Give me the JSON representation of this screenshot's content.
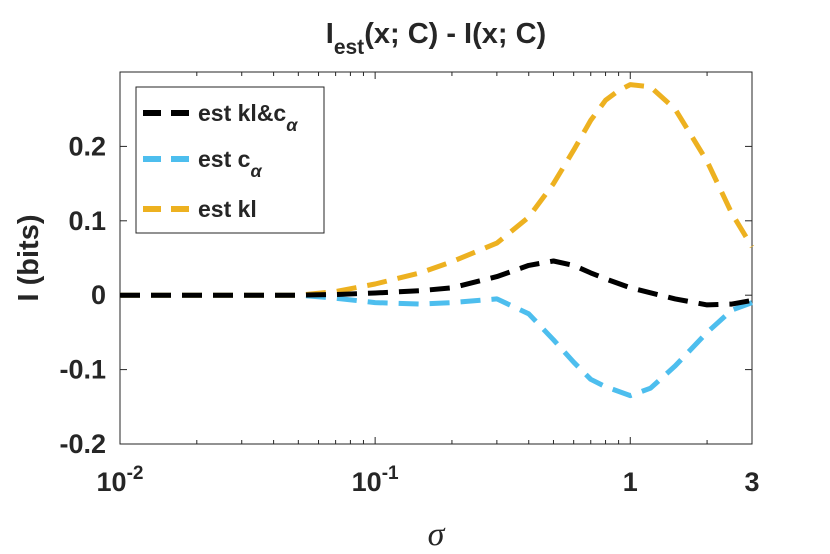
{
  "chart_data": {
    "type": "line",
    "title": {
      "base": "I",
      "sub": "est",
      "rest": "(x; C) - I(x; C)"
    },
    "xlabel": "σ",
    "ylabel": "I (bits)",
    "xscale": "log",
    "xlim": [
      0.01,
      3
    ],
    "ylim": [
      -0.2,
      0.3
    ],
    "xticks": [
      {
        "value": 0.01,
        "base": "10",
        "exp": "-2"
      },
      {
        "value": 0.1,
        "base": "10",
        "exp": "-1"
      },
      {
        "value": 1,
        "base": "1",
        "exp": ""
      },
      {
        "value": 3,
        "base": "3",
        "exp": ""
      }
    ],
    "yticks": [
      {
        "value": -0.2,
        "label": "-0.2"
      },
      {
        "value": -0.1,
        "label": "-0.1"
      },
      {
        "value": 0,
        "label": "0"
      },
      {
        "value": 0.1,
        "label": "0.1"
      },
      {
        "value": 0.2,
        "label": "0.2"
      }
    ],
    "grid": false,
    "legend_position": "top-left",
    "series": [
      {
        "name": "est kl&c",
        "name_sub": "α",
        "color": "#000000",
        "x": [
          0.01,
          0.02,
          0.05,
          0.07,
          0.1,
          0.15,
          0.2,
          0.3,
          0.4,
          0.5,
          0.6,
          0.7,
          0.8,
          1.0,
          1.5,
          2.0,
          2.5,
          3.0
        ],
        "y": [
          0,
          0,
          0,
          0.001,
          0.003,
          0.006,
          0.01,
          0.025,
          0.04,
          0.046,
          0.04,
          0.03,
          0.022,
          0.01,
          -0.005,
          -0.013,
          -0.012,
          -0.007
        ]
      },
      {
        "name": "est c",
        "name_sub": "α",
        "color": "#4DBEEE",
        "x": [
          0.01,
          0.02,
          0.05,
          0.07,
          0.1,
          0.15,
          0.2,
          0.3,
          0.4,
          0.5,
          0.6,
          0.7,
          0.8,
          1.0,
          1.2,
          1.5,
          2.0,
          2.5,
          3.0
        ],
        "y": [
          0,
          0,
          0,
          -0.004,
          -0.01,
          -0.012,
          -0.01,
          -0.005,
          -0.025,
          -0.06,
          -0.09,
          -0.113,
          -0.123,
          -0.135,
          -0.125,
          -0.095,
          -0.05,
          -0.02,
          -0.01
        ]
      },
      {
        "name": "est kl",
        "name_sub": "",
        "color": "#EDB120",
        "x": [
          0.01,
          0.02,
          0.05,
          0.07,
          0.1,
          0.15,
          0.2,
          0.3,
          0.4,
          0.5,
          0.6,
          0.7,
          0.8,
          0.9,
          1.0,
          1.2,
          1.5,
          2.0,
          2.5,
          3.0
        ],
        "y": [
          0,
          0,
          0,
          0.005,
          0.015,
          0.03,
          0.045,
          0.07,
          0.105,
          0.15,
          0.195,
          0.235,
          0.262,
          0.275,
          0.283,
          0.28,
          0.25,
          0.18,
          0.11,
          0.065
        ]
      }
    ]
  }
}
